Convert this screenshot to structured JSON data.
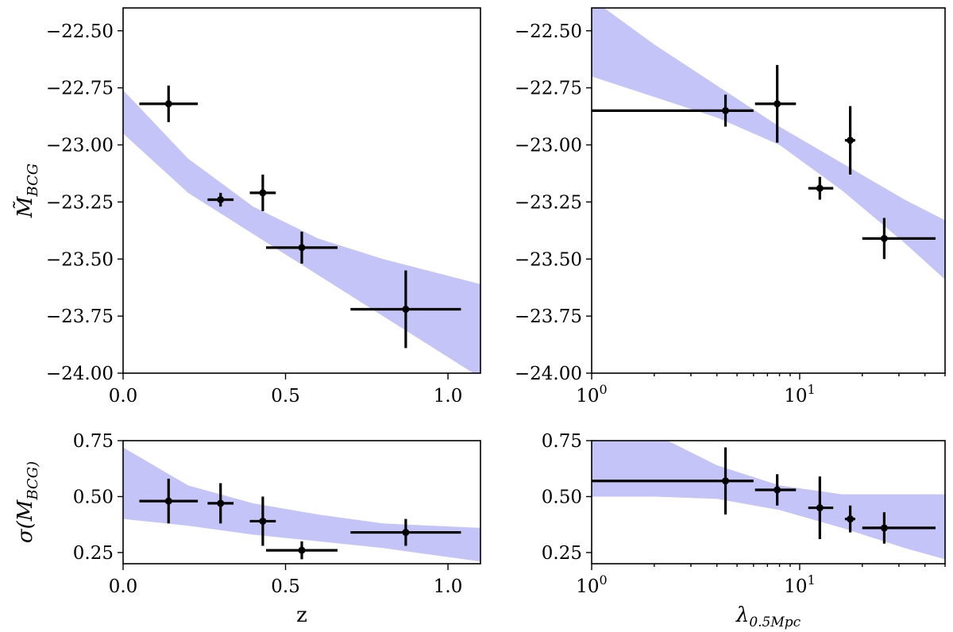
{
  "colors": {
    "band": "#c4c4f8",
    "marker": "#000000"
  },
  "chart_data": [
    {
      "id": "top-left",
      "type": "scatter",
      "xscale": "linear",
      "xlim": [
        0.0,
        1.1
      ],
      "ylim": [
        -24.0,
        -22.4
      ],
      "xticks": [
        {
          "v": 0.0,
          "label": "0.0"
        },
        {
          "v": 0.5,
          "label": "0.5"
        },
        {
          "v": 1.0,
          "label": "1.0"
        }
      ],
      "yticks": [
        {
          "v": -22.5,
          "label": "−22.50"
        },
        {
          "v": -22.75,
          "label": "−22.75"
        },
        {
          "v": -23.0,
          "label": "−23.00"
        },
        {
          "v": -23.25,
          "label": "−23.25"
        },
        {
          "v": -23.5,
          "label": "−23.50"
        },
        {
          "v": -23.75,
          "label": "−23.75"
        },
        {
          "v": -24.0,
          "label": "−24.00"
        }
      ],
      "ylabel": "M̃_BCG",
      "band": {
        "x": [
          0.0,
          0.2,
          0.4,
          0.6,
          0.8,
          1.1
        ],
        "upper": [
          -22.76,
          -23.06,
          -23.27,
          -23.41,
          -23.5,
          -23.61
        ],
        "lower": [
          -22.95,
          -23.21,
          -23.39,
          -23.57,
          -23.75,
          -24.02
        ]
      },
      "points": [
        {
          "x": 0.14,
          "y": -22.82,
          "xerr": [
            0.09,
            0.09
          ],
          "yerr": [
            0.08,
            0.08
          ]
        },
        {
          "x": 0.3,
          "y": -23.24,
          "xerr": [
            0.04,
            0.04
          ],
          "yerr": [
            0.03,
            0.03
          ]
        },
        {
          "x": 0.43,
          "y": -23.21,
          "xerr": [
            0.04,
            0.04
          ],
          "yerr": [
            0.08,
            0.08
          ]
        },
        {
          "x": 0.55,
          "y": -23.45,
          "xerr": [
            0.11,
            0.11
          ],
          "yerr": [
            0.07,
            0.07
          ]
        },
        {
          "x": 0.87,
          "y": -23.72,
          "xerr": [
            0.17,
            0.17
          ],
          "yerr": [
            0.17,
            0.17
          ]
        }
      ]
    },
    {
      "id": "top-right",
      "type": "scatter",
      "xscale": "log",
      "xlim": [
        1,
        50
      ],
      "ylim": [
        -24.0,
        -22.4
      ],
      "xticks": [
        {
          "v": 1,
          "label": "10^0"
        },
        {
          "v": 10,
          "label": "10^1"
        }
      ],
      "yticks": [
        {
          "v": -22.5,
          "label": "−22.50"
        },
        {
          "v": -22.75,
          "label": "−22.75"
        },
        {
          "v": -23.0,
          "label": "−23.00"
        },
        {
          "v": -23.25,
          "label": "−23.25"
        },
        {
          "v": -23.5,
          "label": "−23.50"
        },
        {
          "v": -23.75,
          "label": "−23.75"
        },
        {
          "v": -24.0,
          "label": "−24.00"
        }
      ],
      "band": {
        "x": [
          1,
          2,
          4,
          8,
          16,
          32,
          50
        ],
        "upper": [
          -22.36,
          -22.56,
          -22.74,
          -22.92,
          -23.08,
          -23.24,
          -23.33
        ],
        "lower": [
          -22.7,
          -22.79,
          -22.88,
          -23.0,
          -23.2,
          -23.43,
          -23.59
        ]
      },
      "points": [
        {
          "x": 4.4,
          "y": -22.85,
          "xerr": [
            3.4,
            1.6
          ],
          "yerr": [
            0.07,
            0.07
          ]
        },
        {
          "x": 7.8,
          "y": -22.82,
          "xerr": [
            1.7,
            1.8
          ],
          "yerr": [
            0.17,
            0.17
          ]
        },
        {
          "x": 12.5,
          "y": -23.19,
          "xerr": [
            1.5,
            2.0
          ],
          "yerr": [
            0.05,
            0.05
          ]
        },
        {
          "x": 17.5,
          "y": -22.98,
          "xerr": [
            1.0,
            1.0
          ],
          "yerr": [
            0.15,
            0.15
          ]
        },
        {
          "x": 25.5,
          "y": -23.41,
          "xerr": [
            5.5,
            19.5
          ],
          "yerr": [
            0.09,
            0.09
          ]
        }
      ]
    },
    {
      "id": "bottom-left",
      "type": "scatter",
      "xscale": "linear",
      "xlim": [
        0.0,
        1.1
      ],
      "ylim": [
        0.2,
        0.75
      ],
      "xticks": [
        {
          "v": 0.0,
          "label": "0.0"
        },
        {
          "v": 0.5,
          "label": "0.5"
        },
        {
          "v": 1.0,
          "label": "1.0"
        }
      ],
      "yticks": [
        {
          "v": 0.25,
          "label": "0.25"
        },
        {
          "v": 0.5,
          "label": "0.50"
        },
        {
          "v": 0.75,
          "label": "0.75"
        }
      ],
      "ylabel": "σ(M_BCG)",
      "xlabel": "z",
      "band": {
        "x": [
          0.0,
          0.2,
          0.4,
          0.6,
          0.8,
          1.1
        ],
        "upper": [
          0.72,
          0.55,
          0.47,
          0.42,
          0.38,
          0.36
        ],
        "lower": [
          0.4,
          0.37,
          0.33,
          0.3,
          0.27,
          0.21
        ]
      },
      "points": [
        {
          "x": 0.14,
          "y": 0.48,
          "xerr": [
            0.09,
            0.09
          ],
          "yerr": [
            0.1,
            0.1
          ]
        },
        {
          "x": 0.3,
          "y": 0.47,
          "xerr": [
            0.04,
            0.04
          ],
          "yerr": [
            0.09,
            0.09
          ]
        },
        {
          "x": 0.43,
          "y": 0.39,
          "xerr": [
            0.04,
            0.04
          ],
          "yerr": [
            0.11,
            0.11
          ]
        },
        {
          "x": 0.55,
          "y": 0.26,
          "xerr": [
            0.11,
            0.11
          ],
          "yerr": [
            0.04,
            0.04
          ]
        },
        {
          "x": 0.87,
          "y": 0.34,
          "xerr": [
            0.17,
            0.17
          ],
          "yerr": [
            0.06,
            0.06
          ]
        }
      ]
    },
    {
      "id": "bottom-right",
      "type": "scatter",
      "xscale": "log",
      "xlim": [
        1,
        50
      ],
      "ylim": [
        0.2,
        0.75
      ],
      "xticks": [
        {
          "v": 1,
          "label": "10^0"
        },
        {
          "v": 10,
          "label": "10^1"
        }
      ],
      "yticks": [
        {
          "v": 0.25,
          "label": "0.25"
        },
        {
          "v": 0.5,
          "label": "0.50"
        },
        {
          "v": 0.75,
          "label": "0.75"
        }
      ],
      "xlabel": "λ_0.5Mpc",
      "band": {
        "x": [
          1,
          2,
          4,
          8,
          16,
          32,
          50
        ],
        "upper": [
          0.78,
          0.78,
          0.64,
          0.55,
          0.51,
          0.51,
          0.51
        ],
        "lower": [
          0.5,
          0.5,
          0.49,
          0.44,
          0.36,
          0.27,
          0.22
        ]
      },
      "points": [
        {
          "x": 4.4,
          "y": 0.57,
          "xerr": [
            3.4,
            1.6
          ],
          "yerr": [
            0.15,
            0.15
          ]
        },
        {
          "x": 7.8,
          "y": 0.53,
          "xerr": [
            1.7,
            1.8
          ],
          "yerr": [
            0.07,
            0.07
          ]
        },
        {
          "x": 12.5,
          "y": 0.45,
          "xerr": [
            1.5,
            2.0
          ],
          "yerr": [
            0.14,
            0.14
          ]
        },
        {
          "x": 17.5,
          "y": 0.4,
          "xerr": [
            1.0,
            1.0
          ],
          "yerr": [
            0.06,
            0.06
          ]
        },
        {
          "x": 25.5,
          "y": 0.36,
          "xerr": [
            5.5,
            19.5
          ],
          "yerr": [
            0.07,
            0.07
          ]
        }
      ]
    }
  ]
}
